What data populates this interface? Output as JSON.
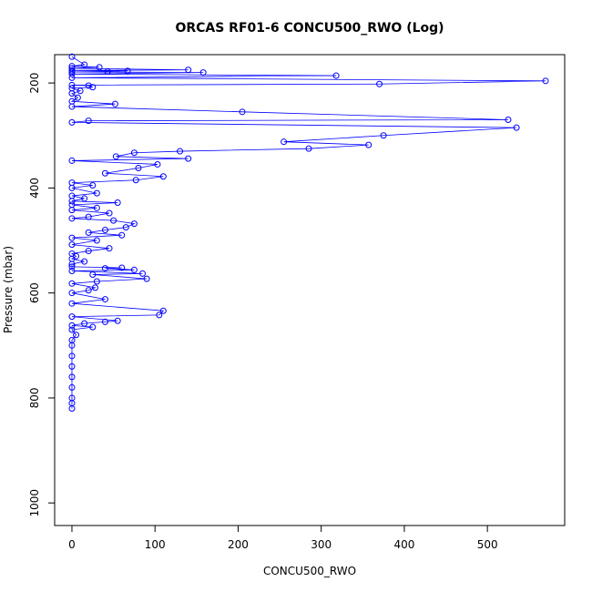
{
  "chart_data": {
    "type": "line",
    "title": "ORCAS RF01-6 CONCU500_RWO (Log)",
    "x_label": "CONCU500_RWO",
    "y_label": "Pressure (mbar)",
    "color": "#0000ff",
    "markers": true,
    "x": [
      0,
      15,
      0,
      33,
      0,
      140,
      0,
      67,
      43,
      0,
      158,
      0,
      318,
      0,
      570,
      370,
      0,
      20,
      25,
      0,
      10,
      0,
      7,
      0,
      52,
      0,
      205,
      525,
      20,
      0,
      535,
      375,
      255,
      357,
      285,
      130,
      75,
      53,
      140,
      0,
      103,
      80,
      40,
      110,
      77,
      0,
      25,
      0,
      30,
      0,
      15,
      0,
      55,
      0,
      30,
      0,
      45,
      20,
      0,
      50,
      75,
      65,
      40,
      20,
      60,
      0,
      30,
      0,
      45,
      20,
      0,
      5,
      0,
      15,
      0,
      0,
      60,
      40,
      75,
      0,
      85,
      25,
      90,
      30,
      0,
      28,
      20,
      0,
      40,
      0,
      110,
      105,
      0,
      55,
      40,
      15,
      0,
      25,
      0,
      5,
      0,
      0,
      0,
      0,
      0,
      0,
      0,
      0,
      0
    ],
    "y": [
      150,
      165,
      168,
      170,
      172,
      175,
      176,
      177,
      178,
      179,
      180,
      183,
      186,
      190,
      196,
      202,
      204,
      205,
      208,
      210,
      215,
      220,
      228,
      235,
      240,
      245,
      255,
      270,
      272,
      275,
      285,
      300,
      312,
      318,
      325,
      330,
      333,
      340,
      344,
      348,
      355,
      362,
      372,
      378,
      385,
      390,
      395,
      400,
      410,
      415,
      420,
      425,
      428,
      432,
      438,
      442,
      448,
      455,
      458,
      462,
      468,
      475,
      480,
      485,
      490,
      495,
      500,
      508,
      515,
      520,
      525,
      530,
      535,
      540,
      545,
      550,
      552,
      553,
      556,
      558,
      563,
      565,
      573,
      578,
      582,
      590,
      595,
      600,
      612,
      620,
      634,
      642,
      645,
      653,
      655,
      658,
      662,
      665,
      670,
      680,
      690,
      700,
      720,
      740,
      760,
      780,
      800,
      810,
      820
    ],
    "xlim": [
      -20.8,
      593
    ],
    "ylim": [
      1043,
      146
    ],
    "xticks": [
      0,
      100,
      200,
      300,
      400,
      500
    ],
    "yticks": [
      200,
      400,
      600,
      800,
      1000
    ]
  }
}
